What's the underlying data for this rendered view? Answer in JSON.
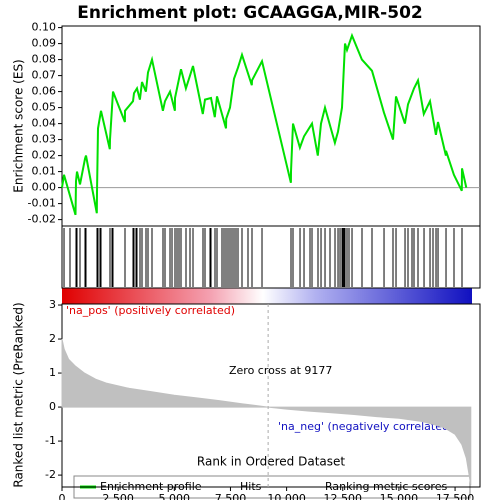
{
  "chart_data": [
    {
      "type": "line",
      "title": "Enrichment plot: GCAAGGA,MIR-502",
      "ylabel": "Enrichment score (ES)",
      "xlim": [
        0,
        18610
      ],
      "ylim": [
        -0.024,
        0.101
      ],
      "yticks": [
        -0.02,
        -0.01,
        {
          "value": 0,
          "label": "0.00"
        },
        0.01,
        0.02,
        0.03,
        0.04,
        0.05,
        0.06,
        0.07,
        0.08,
        0.09,
        {
          "value": 0.1,
          "label": "0.10"
        }
      ],
      "series": [
        {
          "name": "Enrichment profile",
          "color": "#00e000",
          "x": [
            0,
            90,
            600,
            623,
            668,
            800,
            1024,
            1069,
            1550,
            1558,
            1603,
            1737,
            2130,
            2137,
            2271,
            2800,
            2805,
            3161,
            3206,
            3339,
            3470,
            3562,
            3735,
            3829,
            4007,
            4490,
            4586,
            4809,
            5025,
            5031,
            5298,
            5515,
            5699,
            5833,
            6270,
            6367,
            6634,
            6805,
            6901,
            7300,
            7310,
            7480,
            7658,
            7836,
            8014,
            8450,
            8459,
            8905,
            10190,
            10196,
            10285,
            10590,
            10775,
            11131,
            11390,
            11532,
            11710,
            12150,
            12289,
            12467,
            12600,
            12689,
            12912,
            13350,
            13802,
            14330,
            14737,
            14871,
            15265,
            15405,
            15672,
            15850,
            16110,
            16385,
            16645,
            16741,
            17090,
            17097,
            17450,
            17800,
            17809,
            18000
          ],
          "values": [
            0,
            0.008,
            -0.017,
            0.004,
            0.01,
            0.002,
            0.018,
            0.02,
            -0.016,
            -0.003,
            0.037,
            0.048,
            0.024,
            0.03,
            0.06,
            0.041,
            0.048,
            0.054,
            0.059,
            0.062,
            0.055,
            0.066,
            0.06,
            0.072,
            0.08,
            0.048,
            0.054,
            0.06,
            0.048,
            0.056,
            0.074,
            0.062,
            0.07,
            0.076,
            0.046,
            0.055,
            0.056,
            0.044,
            0.057,
            0.037,
            0.043,
            0.05,
            0.068,
            0.075,
            0.083,
            0.064,
            0.067,
            0.079,
            0.003,
            0.01,
            0.04,
            0.025,
            0.032,
            0.04,
            0.02,
            0.04,
            0.05,
            0.028,
            0.035,
            0.05,
            0.09,
            0.086,
            0.095,
            0.08,
            0.073,
            0.047,
            0.03,
            0.057,
            0.04,
            0.052,
            0.062,
            0.067,
            0.046,
            0.054,
            0.033,
            0.041,
            0.02,
            0.023,
            0.008,
            -0.002,
            0.012,
            0
          ]
        }
      ]
    },
    {
      "type": "hits",
      "xlim": [
        0,
        18610
      ],
      "series": [
        {
          "name": "Hits",
          "color": "#000000",
          "x": [
            90,
            356,
            623,
            668,
            801,
            1024,
            1069,
            1558,
            1603,
            1692,
            1737,
            2137,
            2226,
            2271,
            2805,
            3161,
            3206,
            3295,
            3339,
            3473,
            3562,
            3740,
            3829,
            4007,
            4497,
            4586,
            4809,
            4898,
            5031,
            5120,
            5209,
            5298,
            5521,
            5699,
            5833,
            6278,
            6367,
            6589,
            6634,
            6812,
            6901,
            7124,
            7213,
            7302,
            7391,
            7480,
            7569,
            7658,
            7747,
            7836,
            8014,
            8281,
            8459,
            8905,
            10196,
            10285,
            10597,
            10775,
            11042,
            11131,
            11398,
            11532,
            11710,
            11932,
            12155,
            12289,
            12378,
            12467,
            12511,
            12556,
            12600,
            12689,
            12778,
            12912,
            13357,
            13802,
            14337,
            14737,
            14871,
            15272,
            15405,
            15583,
            15672,
            15850,
            16118,
            16385,
            16518,
            16652,
            16741,
            17097,
            17453,
            17809
          ]
        }
      ]
    },
    {
      "type": "area",
      "ylabel": "Ranked list metric (PreRanked)",
      "xlabel": "Rank in Ordered Dataset",
      "xlim": [
        0,
        18610
      ],
      "ylim": [
        -2.35,
        3.03
      ],
      "xticks": [
        0,
        {
          "value": 2500,
          "label": "2,500"
        },
        {
          "value": 5000,
          "label": "5,000"
        },
        {
          "value": 7500,
          "label": "7,500"
        },
        {
          "value": 10000,
          "label": "10,000"
        },
        {
          "value": 12500,
          "label": "12,500"
        },
        {
          "value": 15000,
          "label": "15,000"
        },
        {
          "value": 17500,
          "label": "17,500"
        }
      ],
      "yticks": [
        -2,
        -1,
        0,
        1,
        2,
        3
      ],
      "zero_cross": 9177,
      "annotations": [
        "'na_pos' (positively correlated)",
        "Zero cross at 9177",
        "'na_neg' (negatively correlated)"
      ],
      "series": [
        {
          "name": "Ranking metric scores",
          "color": "#c0c0c0",
          "x": [
            0,
            100,
            300,
            600,
            1000,
            1500,
            2000,
            3000,
            4000,
            5000,
            6000,
            7000,
            8000,
            9177,
            10000,
            11000,
            12000,
            13000,
            14000,
            15000,
            16000,
            16500,
            17000,
            17500,
            17800,
            18000,
            18200
          ],
          "values": [
            2.0,
            1.7,
            1.4,
            1.2,
            1.0,
            0.82,
            0.7,
            0.55,
            0.45,
            0.35,
            0.27,
            0.19,
            0.1,
            0,
            -0.06,
            -0.12,
            -0.17,
            -0.22,
            -0.28,
            -0.33,
            -0.42,
            -0.5,
            -0.6,
            -0.8,
            -1.1,
            -1.5,
            -2.3
          ]
        }
      ]
    }
  ]
}
